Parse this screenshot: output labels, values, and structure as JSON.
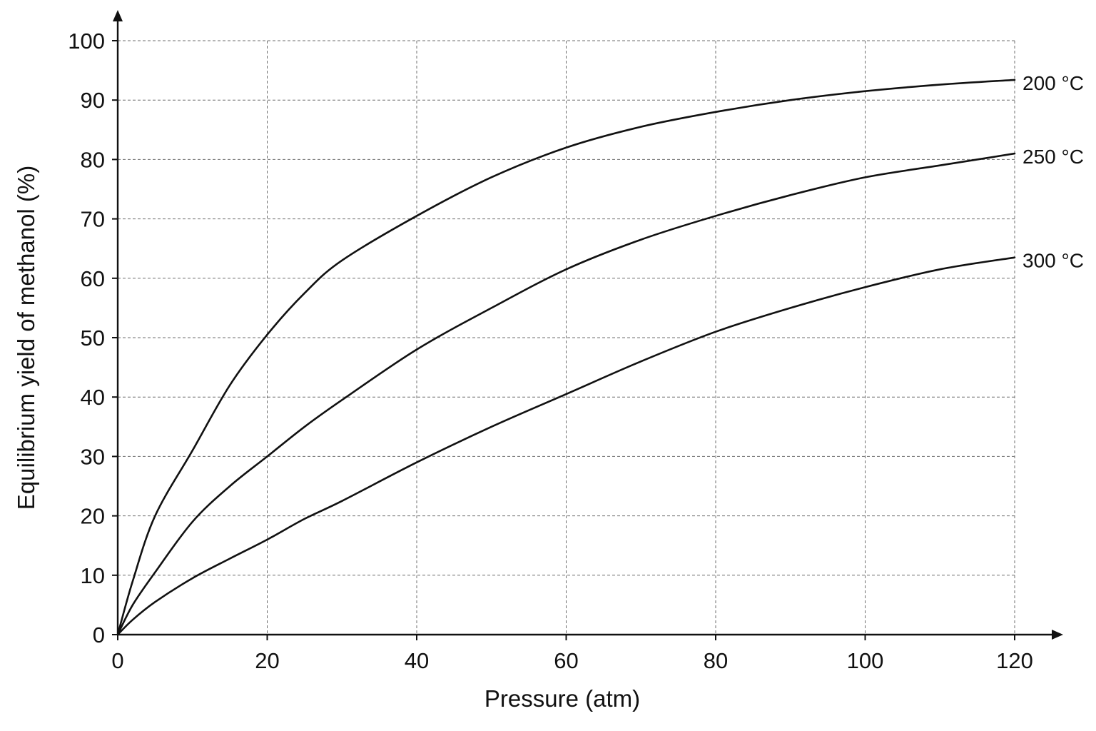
{
  "chart_data": {
    "type": "line",
    "title": "",
    "xlabel": "Pressure (atm)",
    "ylabel": "Equilibrium yield of methanol (%)",
    "xlim": [
      0,
      120
    ],
    "ylim": [
      0,
      100
    ],
    "xticks": [
      0,
      20,
      40,
      60,
      80,
      100,
      120
    ],
    "yticks": [
      0,
      10,
      20,
      30,
      40,
      50,
      60,
      70,
      80,
      90,
      100
    ],
    "grid": true,
    "legend": "inline labels at right end of each line",
    "x": [
      0,
      2,
      5,
      10,
      15,
      20,
      25,
      30,
      40,
      50,
      60,
      70,
      80,
      90,
      100,
      110,
      120
    ],
    "series": [
      {
        "name": "200 °C",
        "color": "#111111",
        "values": [
          0,
          9,
          20,
          31,
          42,
          50.5,
          57.5,
          63,
          70.5,
          77,
          82,
          85.5,
          88,
          90,
          91.5,
          92.6,
          93.4
        ]
      },
      {
        "name": "250 °C",
        "color": "#111111",
        "values": [
          0,
          5,
          10.5,
          19,
          25,
          30,
          35,
          39.5,
          48,
          55,
          61.5,
          66.5,
          70.5,
          74,
          77,
          79,
          81
        ]
      },
      {
        "name": "300 °C",
        "color": "#111111",
        "values": [
          0,
          2.5,
          5.5,
          9.5,
          12.8,
          16,
          19.5,
          22.5,
          29,
          35,
          40.5,
          46,
          51,
          55,
          58.5,
          61.5,
          63.5
        ]
      }
    ]
  }
}
